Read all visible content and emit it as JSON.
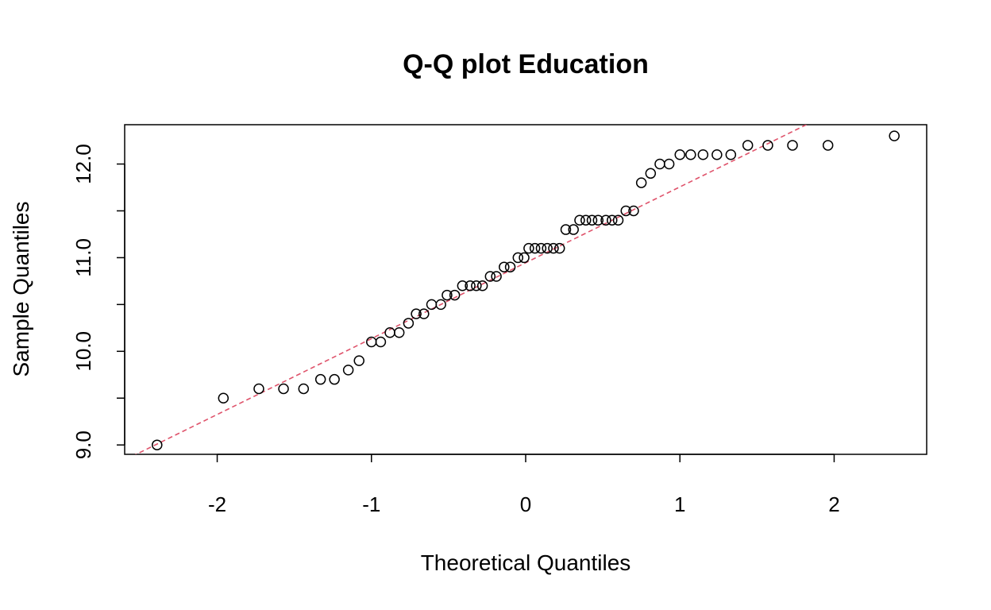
{
  "chart_data": {
    "type": "scatter",
    "title": "Q-Q plot Education",
    "xlabel": "Theoretical Quantiles",
    "ylabel": "Sample Quantiles",
    "xlim": [
      -2.6,
      2.6
    ],
    "ylim": [
      8.9,
      12.42
    ],
    "x_ticks": [
      -2,
      -1,
      0,
      1,
      2
    ],
    "x_tick_labels": [
      "-2",
      "-1",
      "0",
      "1",
      "2"
    ],
    "y_ticks": [
      9.0,
      9.5,
      10.0,
      10.5,
      11.0,
      11.5,
      12.0
    ],
    "y_tick_labels": [
      "9.0",
      "",
      "10.0",
      "",
      "11.0",
      "",
      "12.0"
    ],
    "grid": false,
    "reference_line": {
      "color": "#DF536B",
      "style": "dashed",
      "x": [
        -2.55,
        1.82
      ],
      "y": [
        8.88,
        12.42
      ]
    },
    "series": [
      {
        "name": "Education",
        "marker": "open-circle",
        "color": "#000000",
        "x": [
          -2.39,
          -1.96,
          -1.73,
          -1.57,
          -1.44,
          -1.33,
          -1.24,
          -1.15,
          -1.08,
          -1.0,
          -0.94,
          -0.88,
          -0.82,
          -0.76,
          -0.71,
          -0.66,
          -0.61,
          -0.55,
          -0.51,
          -0.46,
          -0.41,
          -0.36,
          -0.32,
          -0.28,
          -0.23,
          -0.19,
          -0.14,
          -0.1,
          -0.05,
          -0.01,
          0.02,
          0.06,
          0.1,
          0.14,
          0.18,
          0.22,
          0.26,
          0.31,
          0.35,
          0.39,
          0.43,
          0.47,
          0.52,
          0.56,
          0.6,
          0.65,
          0.7,
          0.75,
          0.81,
          0.87,
          0.93,
          1.0,
          1.07,
          1.15,
          1.24,
          1.33,
          1.44,
          1.57,
          1.73,
          1.96,
          2.39
        ],
        "y": [
          9.0,
          9.5,
          9.6,
          9.6,
          9.6,
          9.7,
          9.7,
          9.8,
          9.9,
          10.1,
          10.1,
          10.2,
          10.2,
          10.3,
          10.4,
          10.4,
          10.5,
          10.5,
          10.6,
          10.6,
          10.7,
          10.7,
          10.7,
          10.7,
          10.8,
          10.8,
          10.9,
          10.9,
          11.0,
          11.0,
          11.1,
          11.1,
          11.1,
          11.1,
          11.1,
          11.1,
          11.3,
          11.3,
          11.4,
          11.4,
          11.4,
          11.4,
          11.4,
          11.4,
          11.4,
          11.5,
          11.5,
          11.8,
          11.9,
          12.0,
          12.0,
          12.1,
          12.1,
          12.1,
          12.1,
          12.1,
          12.2,
          12.2,
          12.2,
          12.2,
          12.3
        ]
      }
    ]
  }
}
